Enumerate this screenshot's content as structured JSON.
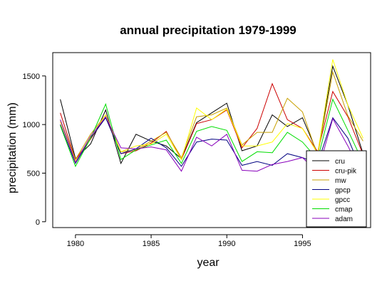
{
  "chart_data": {
    "type": "line",
    "title": "annual precipitation 1979-1999",
    "xlabel": "year",
    "ylabel": "precipitation (mm)",
    "xlim": [
      1978.5,
      1999.5
    ],
    "ylim": [
      -60,
      1740
    ],
    "x_ticks": [
      "1980",
      "1985",
      "1990",
      "1995"
    ],
    "y_ticks": [
      "0",
      "500",
      "1000",
      "1500"
    ],
    "legend_position": "bottom-right",
    "x": [
      1979,
      1980,
      1981,
      1982,
      1983,
      1984,
      1985,
      1986,
      1987,
      1988,
      1989,
      1990,
      1991,
      1992,
      1993,
      1994,
      1995,
      1996,
      1997,
      1998,
      1999
    ],
    "series": [
      {
        "name": "cru",
        "color": "#000000",
        "values": [
          1260,
          650,
          800,
          1150,
          600,
          900,
          830,
          780,
          650,
          1020,
          1120,
          1220,
          730,
          780,
          1100,
          980,
          1070,
          700,
          1600,
          1200,
          700
        ]
      },
      {
        "name": "cru-pik",
        "color": "#cc0000",
        "values": [
          1120,
          640,
          850,
          1080,
          700,
          730,
          810,
          930,
          640,
          1010,
          1050,
          1150,
          760,
          960,
          1420,
          1050,
          960,
          720,
          1340,
          1080,
          690
        ]
      },
      {
        "name": "mw",
        "color": "#c8a000",
        "values": [
          1050,
          640,
          900,
          1100,
          720,
          740,
          830,
          920,
          660,
          1080,
          1100,
          1170,
          790,
          920,
          920,
          1270,
          1130,
          680,
          1540,
          1090,
          830
        ]
      },
      {
        "name": "gpcp",
        "color": "#000080",
        "values": [
          1000,
          600,
          860,
          1070,
          700,
          750,
          860,
          760,
          570,
          820,
          850,
          840,
          580,
          620,
          580,
          700,
          660,
          600,
          1070,
          860,
          490
        ]
      },
      {
        "name": "gpcc",
        "color": "#ffff00",
        "values": [
          1030,
          620,
          870,
          1100,
          720,
          780,
          800,
          900,
          640,
          1170,
          1050,
          1160,
          780,
          780,
          820,
          1010,
          960,
          700,
          1670,
          1200,
          860
        ]
      },
      {
        "name": "cmap",
        "color": "#00dd00",
        "values": [
          990,
          570,
          860,
          1210,
          640,
          740,
          790,
          840,
          600,
          930,
          980,
          940,
          620,
          720,
          710,
          920,
          820,
          640,
          1260,
          940,
          610
        ]
      },
      {
        "name": "adam",
        "color": "#8800bb",
        "values": [
          1050,
          610,
          880,
          1080,
          760,
          750,
          770,
          740,
          520,
          870,
          780,
          900,
          530,
          520,
          590,
          620,
          660,
          510,
          1060,
          780,
          470
        ]
      }
    ]
  }
}
